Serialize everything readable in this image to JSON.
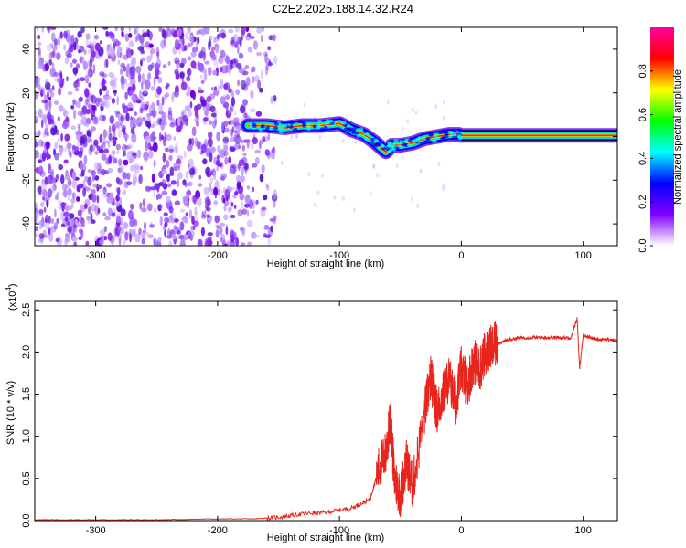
{
  "title": "C2E2.2025.188.14.32.R24",
  "chart_data": [
    {
      "type": "heatmap",
      "xlabel": "Height of straight line (km)",
      "ylabel": "Frequency (Hz)",
      "xlim": [
        -350,
        128
      ],
      "ylim": [
        -50,
        50
      ],
      "x_ticks": [
        -300,
        -200,
        -100,
        0,
        100
      ],
      "y_ticks": [
        -40,
        -20,
        0,
        20,
        40
      ],
      "colorbar": {
        "label": "Normalized spectral amplitude",
        "range": [
          0,
          1
        ],
        "ticks": [
          0.0,
          0.2,
          0.4,
          0.6,
          0.8
        ],
        "colors": [
          "#ffffff",
          "#8000ff",
          "#0000ff",
          "#00ffff",
          "#00ff00",
          "#ffff00",
          "#ff0000",
          "#ff00a0"
        ]
      },
      "noise_region_x": [
        -350,
        -160
      ],
      "ridge": {
        "x": [
          -175,
          -160,
          -145,
          -130,
          -115,
          -100,
          -90,
          -80,
          -70,
          -62,
          -57,
          -50,
          -40,
          -30,
          -20,
          -10,
          -2,
          0,
          128
        ],
        "y": [
          5,
          5,
          4,
          5,
          5,
          6,
          3,
          1,
          -3,
          -7,
          -4,
          -4,
          -3,
          -1,
          0,
          1,
          1,
          0.5,
          0.5
        ]
      }
    },
    {
      "type": "line",
      "xlabel": "Height of straight line (km)",
      "ylabel": "SNR (10 * v/v)",
      "scale_note": "(x10",
      "scale_exp": "4",
      "xlim": [
        -350,
        128
      ],
      "ylim": [
        0,
        2.6
      ],
      "x_ticks": [
        -300,
        -200,
        -100,
        0,
        100
      ],
      "y_ticks": [
        0.0,
        0.5,
        1.0,
        1.5,
        2.0,
        2.5
      ],
      "series": [
        {
          "color": "#e8241c",
          "x": [
            -350,
            -300,
            -250,
            -200,
            -170,
            -150,
            -130,
            -110,
            -90,
            -75,
            -68,
            -62,
            -58,
            -55,
            -50,
            -45,
            -40,
            -30,
            -25,
            -20,
            -15,
            -10,
            -5,
            0,
            5,
            10,
            15,
            20,
            25,
            30,
            40,
            50,
            60,
            70,
            80,
            90,
            95,
            97,
            100,
            110,
            120,
            128
          ],
          "y": [
            0.01,
            0.01,
            0.01,
            0.02,
            0.02,
            0.04,
            0.08,
            0.1,
            0.15,
            0.25,
            0.6,
            0.8,
            1.2,
            0.5,
            0.3,
            0.7,
            0.4,
            1.3,
            1.7,
            1.3,
            1.5,
            1.7,
            1.4,
            1.8,
            1.6,
            1.9,
            1.8,
            2.0,
            2.05,
            2.1,
            2.15,
            2.17,
            2.17,
            2.17,
            2.17,
            2.17,
            2.4,
            1.8,
            2.2,
            2.15,
            2.15,
            2.13
          ]
        }
      ]
    }
  ]
}
